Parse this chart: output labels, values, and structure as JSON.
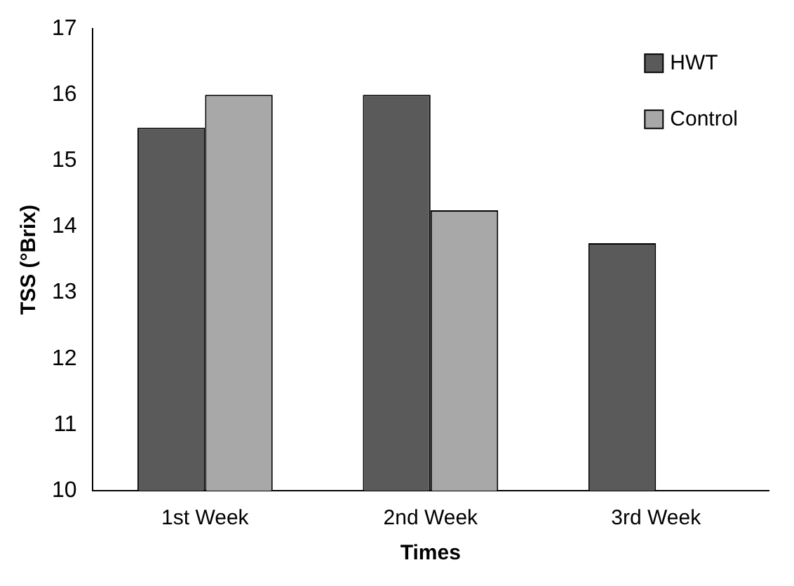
{
  "chart_data": {
    "type": "bar",
    "xlabel": "Times",
    "ylabel": "TSS (°Brix)",
    "categories": [
      "1st Week",
      "2nd Week",
      "3rd Week"
    ],
    "series": [
      {
        "name": "HWT",
        "color": "#5a5a5a",
        "values": [
          15.5,
          16,
          13.75
        ]
      },
      {
        "name": "Control",
        "color": "#a8a8a8",
        "values": [
          16,
          14.25,
          null
        ]
      }
    ],
    "ylim": [
      10,
      17
    ],
    "yticks": [
      10,
      11,
      12,
      13,
      14,
      15,
      16,
      17
    ],
    "grid": false,
    "legend": "top right"
  }
}
